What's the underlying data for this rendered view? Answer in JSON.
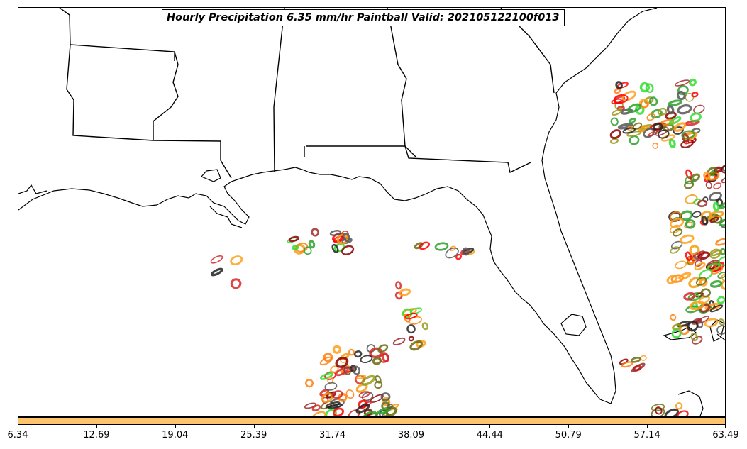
{
  "title": "Hourly Precipitation 6.35 mm/hr Paintball Valid: 202105122100f013",
  "colorbar": {
    "color": "#ffc36b",
    "tick_labels": [
      "6.34",
      "12.69",
      "19.04",
      "25.39",
      "31.74",
      "38.09",
      "44.44",
      "50.79",
      "57.14",
      "63.49"
    ]
  },
  "colors": {
    "coastline": "#000000",
    "paintball_palette": [
      "#ff7f0e",
      "#ff9f1c",
      "#d62728",
      "#ff0000",
      "#8b0000",
      "#a02c2c",
      "#9a9a20",
      "#6b6b10",
      "#2ca02c",
      "#33dd33",
      "#222222",
      "#555555",
      "#f39c12"
    ]
  }
}
